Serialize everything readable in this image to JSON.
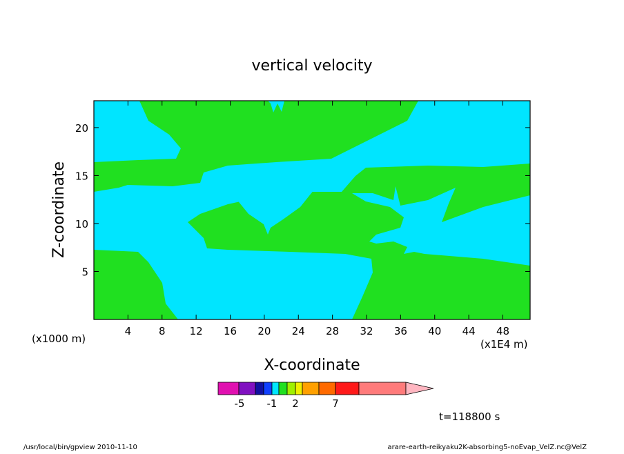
{
  "chart_data": {
    "type": "contour",
    "title": "vertical velocity",
    "x_label": "X-coordinate",
    "y_label": "Z-coordinate",
    "x_unit_label": "(x1E4 m)",
    "y_unit_label": "(x1000 m)",
    "xlim": [
      0,
      51.2
    ],
    "ylim": [
      0,
      22.8
    ],
    "xticks": [
      4,
      8,
      12,
      16,
      20,
      24,
      28,
      32,
      36,
      40,
      44,
      48
    ],
    "yticks": [
      5,
      10,
      15,
      20
    ],
    "colorbar": {
      "colors": [
        "#e010b0",
        "#8010c0",
        "#1010a0",
        "#1040ff",
        "#00e5ff",
        "#20e020",
        "#a0f000",
        "#f0f000",
        "#ffa000",
        "#ff6a00",
        "#ff1a1a",
        "#ff7b7b",
        "#ffb6c1"
      ],
      "ticks": [
        -5,
        -1,
        2,
        7
      ]
    },
    "time_label": "t=118800 s"
  },
  "footer": {
    "left": "/usr/local/bin/gpview  2010-11-10",
    "right": "arare-earth-reikyaku2K-absorbing5-noEvap_VelZ.nc@VelZ"
  }
}
